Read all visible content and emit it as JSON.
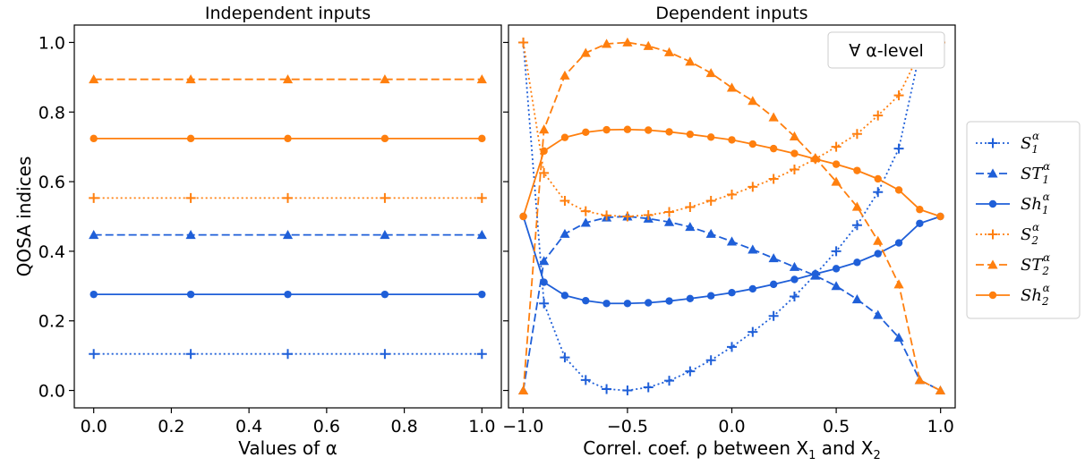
{
  "chart_data": [
    {
      "type": "line",
      "title": "Independent inputs",
      "xlabel": "Values of α",
      "ylabel": "QOSA indices",
      "xlim": [
        -0.05,
        1.05
      ],
      "ylim": [
        -0.05,
        1.05
      ],
      "xticks": [
        "0.0",
        "0.2",
        "0.4",
        "0.6",
        "0.8",
        "1.0"
      ],
      "yticks": [
        "0.0",
        "0.2",
        "0.4",
        "0.6",
        "0.8",
        "1.0"
      ],
      "x": [
        0.0,
        0.25,
        0.5,
        0.75,
        1.0
      ],
      "series": [
        {
          "key": "S1",
          "color": "#1f5fd8",
          "style": "dotted",
          "marker": "plus",
          "values": [
            0.105,
            0.105,
            0.105,
            0.105,
            0.105
          ]
        },
        {
          "key": "ST1",
          "color": "#1f5fd8",
          "style": "dashed",
          "marker": "triangle",
          "values": [
            0.447,
            0.447,
            0.447,
            0.447,
            0.447
          ]
        },
        {
          "key": "Sh1",
          "color": "#1f5fd8",
          "style": "solid",
          "marker": "circle",
          "values": [
            0.276,
            0.276,
            0.276,
            0.276,
            0.276
          ]
        },
        {
          "key": "S2",
          "color": "#ff7f0e",
          "style": "dotted",
          "marker": "plus",
          "values": [
            0.553,
            0.553,
            0.553,
            0.553,
            0.553
          ]
        },
        {
          "key": "ST2",
          "color": "#ff7f0e",
          "style": "dashed",
          "marker": "triangle",
          "values": [
            0.894,
            0.894,
            0.894,
            0.894,
            0.894
          ]
        },
        {
          "key": "Sh2",
          "color": "#ff7f0e",
          "style": "solid",
          "marker": "circle",
          "values": [
            0.724,
            0.724,
            0.724,
            0.724,
            0.724
          ]
        }
      ]
    },
    {
      "type": "line",
      "title": "Dependent inputs",
      "xlabel": "Correl. coef. ρ between X",
      "xlabel_sub1": "1",
      "xlabel_mid": " and X",
      "xlabel_sub2": "2",
      "xlim": [
        -1.07,
        1.07
      ],
      "ylim": [
        -0.05,
        1.05
      ],
      "xticks": [
        "−1.0",
        "−0.5",
        "0.0",
        "0.5",
        "1.0"
      ],
      "annotation": "∀ α-level",
      "x": [
        -0.999,
        -0.9,
        -0.8,
        -0.7,
        -0.6,
        -0.5,
        -0.4,
        -0.3,
        -0.2,
        -0.1,
        0.0,
        0.1,
        0.2,
        0.3,
        0.4,
        0.5,
        0.6,
        0.7,
        0.8,
        0.9,
        0.999
      ],
      "series": [
        {
          "key": "S1",
          "color": "#1f5fd8",
          "style": "dotted",
          "marker": "plus",
          "values": [
            1.0,
            0.25,
            0.095,
            0.03,
            0.004,
            0.0,
            0.009,
            0.028,
            0.055,
            0.087,
            0.125,
            0.168,
            0.214,
            0.27,
            0.333,
            0.4,
            0.475,
            0.57,
            0.695,
            0.97,
            1.0
          ]
        },
        {
          "key": "ST1",
          "color": "#1f5fd8",
          "style": "dashed",
          "marker": "triangle",
          "values": [
            0.0,
            0.372,
            0.45,
            0.482,
            0.497,
            0.5,
            0.494,
            0.484,
            0.47,
            0.45,
            0.428,
            0.405,
            0.38,
            0.355,
            0.33,
            0.3,
            0.262,
            0.217,
            0.152,
            0.03,
            0.0
          ]
        },
        {
          "key": "Sh1",
          "color": "#1f5fd8",
          "style": "solid",
          "marker": "circle",
          "values": [
            0.5,
            0.311,
            0.273,
            0.258,
            0.25,
            0.25,
            0.252,
            0.257,
            0.264,
            0.272,
            0.281,
            0.292,
            0.305,
            0.319,
            0.335,
            0.35,
            0.368,
            0.393,
            0.424,
            0.48,
            0.5
          ]
        },
        {
          "key": "S2",
          "color": "#ff7f0e",
          "style": "dotted",
          "marker": "plus",
          "values": [
            1.0,
            0.625,
            0.545,
            0.515,
            0.503,
            0.5,
            0.504,
            0.513,
            0.527,
            0.545,
            0.563,
            0.585,
            0.608,
            0.635,
            0.665,
            0.7,
            0.737,
            0.79,
            0.848,
            0.97,
            1.0
          ]
        },
        {
          "key": "ST2",
          "color": "#ff7f0e",
          "style": "dashed",
          "marker": "triangle",
          "values": [
            0.0,
            0.75,
            0.905,
            0.97,
            0.996,
            1.0,
            0.99,
            0.972,
            0.945,
            0.912,
            0.87,
            0.832,
            0.785,
            0.73,
            0.668,
            0.6,
            0.528,
            0.43,
            0.305,
            0.03,
            0.0
          ]
        },
        {
          "key": "Sh2",
          "color": "#ff7f0e",
          "style": "solid",
          "marker": "circle",
          "values": [
            0.5,
            0.688,
            0.727,
            0.742,
            0.749,
            0.75,
            0.748,
            0.743,
            0.736,
            0.728,
            0.72,
            0.708,
            0.695,
            0.681,
            0.665,
            0.65,
            0.632,
            0.608,
            0.576,
            0.52,
            0.5
          ]
        }
      ]
    }
  ],
  "legend": {
    "placement": "right-outside",
    "entries": [
      {
        "key": "S1",
        "base": "S",
        "sub": "1",
        "sup": "α"
      },
      {
        "key": "ST1",
        "base": "ST",
        "sub": "1",
        "sup": "α"
      },
      {
        "key": "Sh1",
        "base": "Sh",
        "sub": "1",
        "sup": "α"
      },
      {
        "key": "S2",
        "base": "S",
        "sub": "2",
        "sup": "α"
      },
      {
        "key": "ST2",
        "base": "ST",
        "sub": "2",
        "sup": "α"
      },
      {
        "key": "Sh2",
        "base": "Sh",
        "sub": "2",
        "sup": "α"
      }
    ]
  }
}
